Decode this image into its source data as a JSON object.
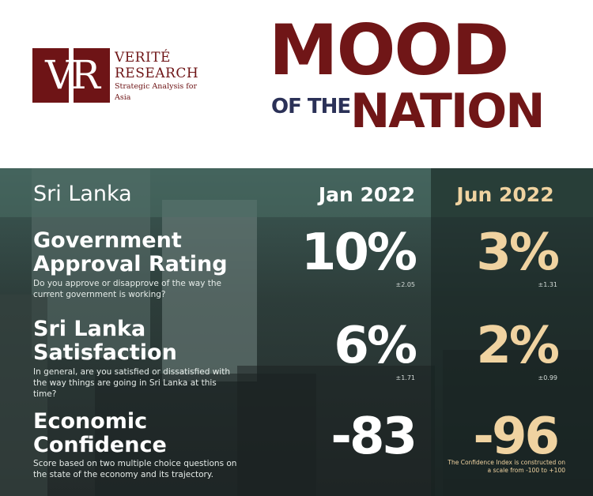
{
  "logo": {
    "mark": "VR",
    "line1": "VERITÉ",
    "line2": "RESEARCH",
    "tagline": "Strategic Analysis for Asia"
  },
  "title": {
    "line1": "MOOD",
    "of_the": "OF THE",
    "line2": "NATION"
  },
  "table": {
    "country": "Sri Lanka",
    "col_jan": "Jan 2022",
    "col_jun": "Jun 2022",
    "rows": [
      {
        "title_line1": "Government",
        "title_line2": "Approval Rating",
        "desc": "Do you approve or disapprove of the way the current government is working?",
        "jan_value": "10%",
        "jan_moe": "±2.05",
        "jun_value": "3%",
        "jun_moe": "±1.31"
      },
      {
        "title_line1": "Sri Lanka",
        "title_line2": "Satisfaction",
        "desc": "In general, are you satisfied or dissatisfied with the way things are going in Sri Lanka at this time?",
        "jan_value": "6%",
        "jan_moe": "±1.71",
        "jun_value": "2%",
        "jun_moe": "±0.99"
      },
      {
        "title_line1": "Economic",
        "title_line2": "Confidence",
        "desc": "Score based on two multiple choice questions on the state of the economy and its trajectory.",
        "jan_value": "-83",
        "jun_value": "-96"
      }
    ],
    "note": "The Confidence Index is constructed on a scale from -100 to +100"
  },
  "colors": {
    "brand": "#701617",
    "navy": "#2b3157",
    "teal": "#3d5a55",
    "gold": "#f0d3a1"
  }
}
